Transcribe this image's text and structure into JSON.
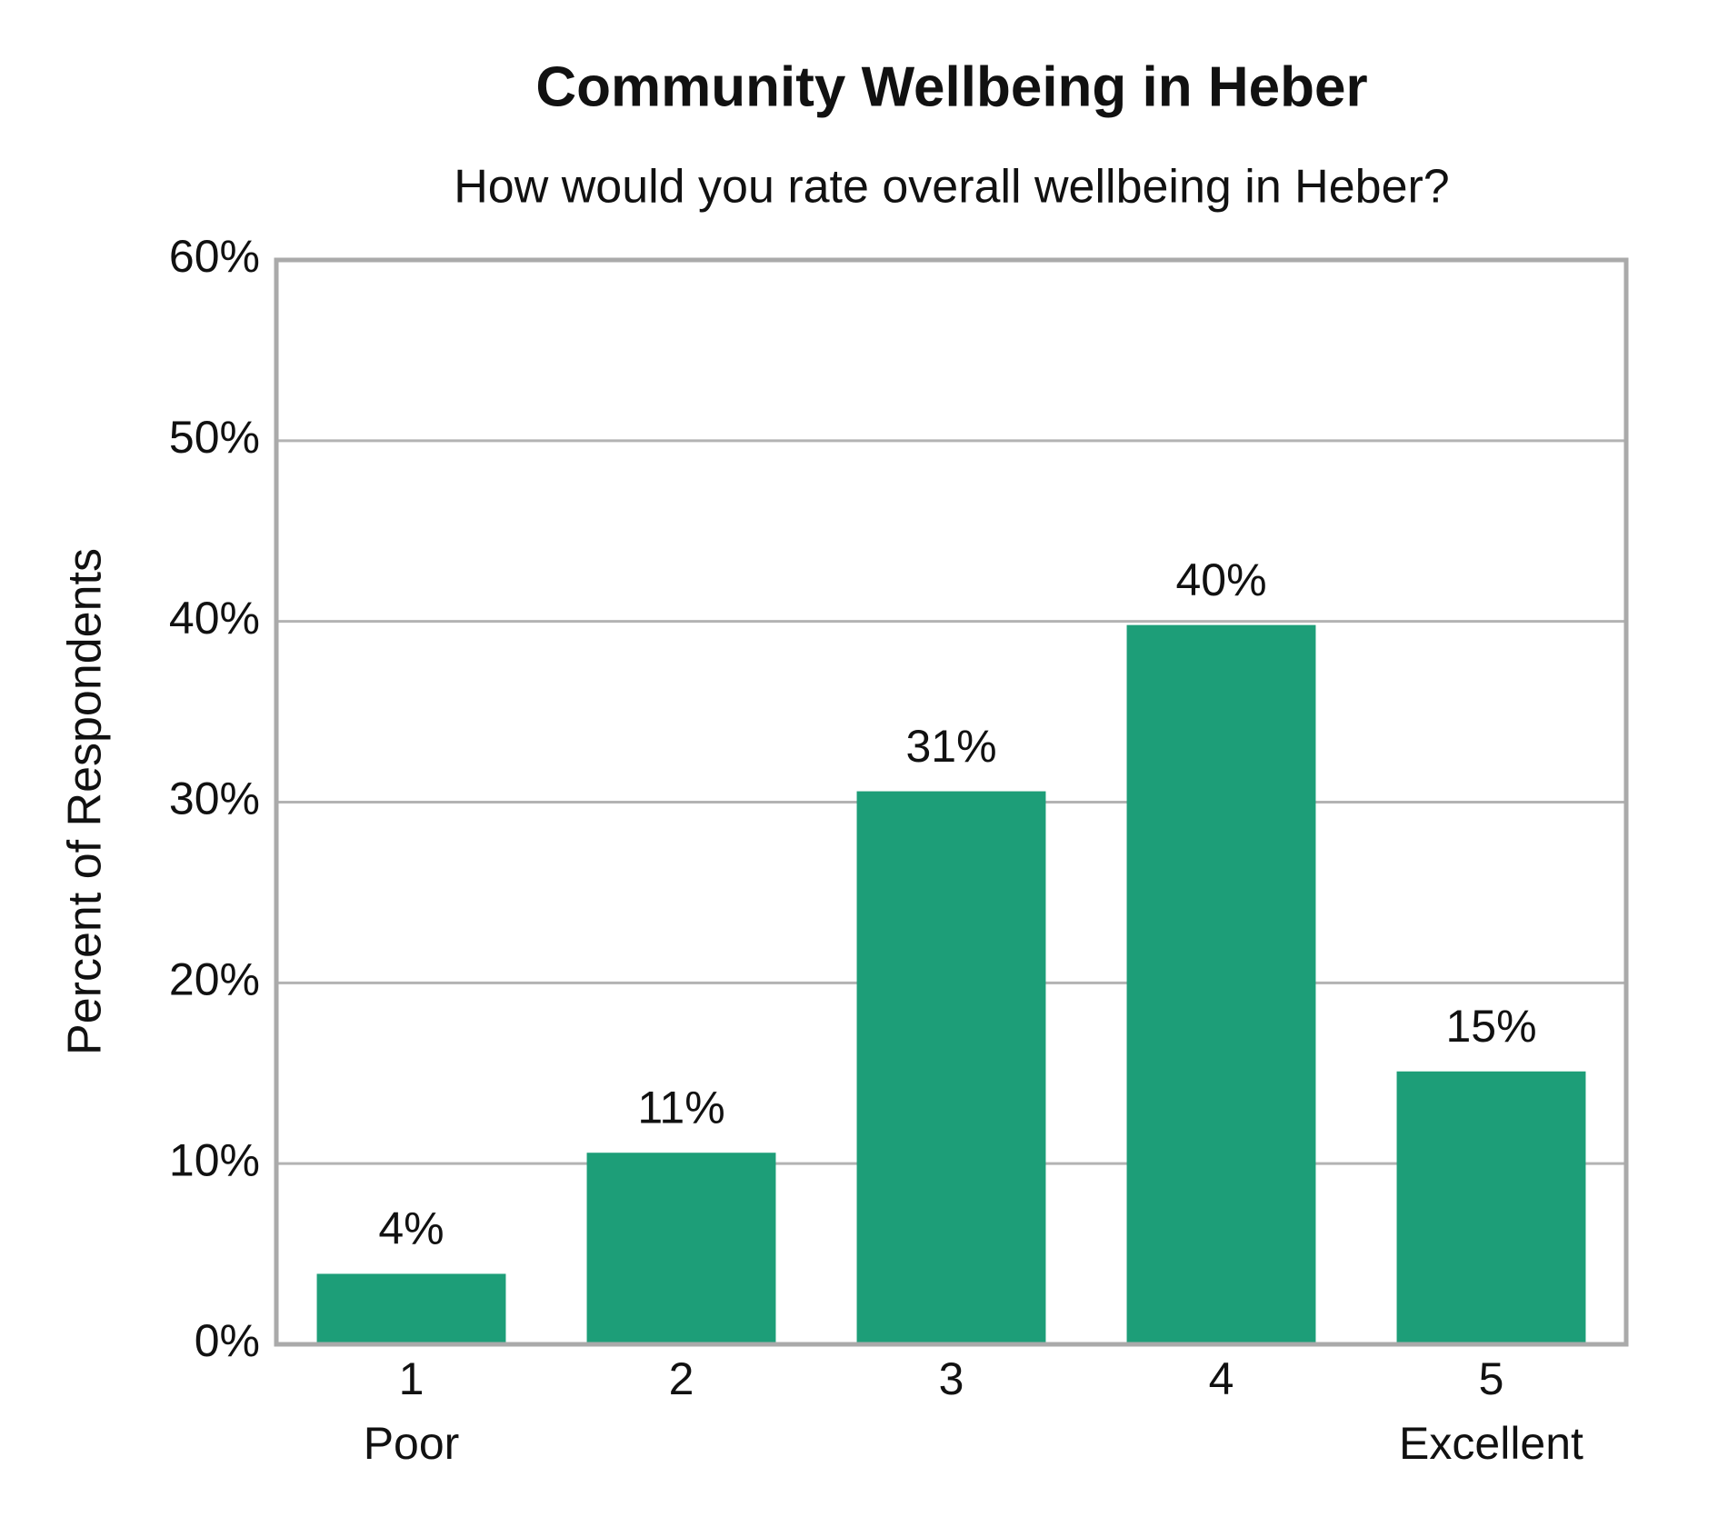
{
  "chart_data": {
    "type": "bar",
    "title": "Community Wellbeing in Heber",
    "subtitle": "How would you rate overall wellbeing in Heber?",
    "y_label": "Percent of Respondents",
    "categories": [
      "1",
      "2",
      "3",
      "4",
      "5"
    ],
    "category_sublabels": [
      "Poor",
      null,
      null,
      null,
      "Excellent"
    ],
    "values": [
      3.9,
      10.6,
      30.6,
      39.8,
      15.1
    ],
    "value_labels": [
      "4%",
      "11%",
      "31%",
      "40%",
      "15%"
    ],
    "color": "#1d9e78",
    "ylim": [
      0,
      60
    ],
    "yticks": [
      {
        "value": 0,
        "label": "0%"
      },
      {
        "value": 10,
        "label": "10%"
      },
      {
        "value": 20,
        "label": "20%"
      },
      {
        "value": 30,
        "label": "30%"
      },
      {
        "value": 40,
        "label": "40%"
      },
      {
        "value": 50,
        "label": "50%"
      },
      {
        "value": 60,
        "label": "60%"
      }
    ],
    "grid": true
  }
}
